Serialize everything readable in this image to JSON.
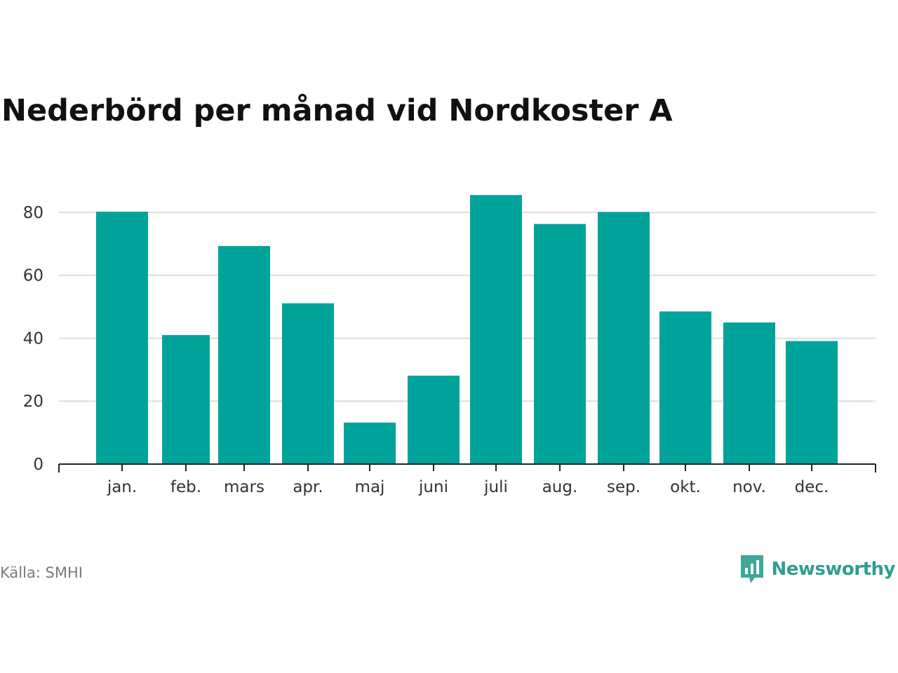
{
  "chart_data": {
    "type": "bar",
    "title": "Nederbörd per månad vid Nordkoster A",
    "xlabel": "",
    "ylabel": "",
    "categories": [
      "jan.",
      "feb.",
      "mars",
      "apr.",
      "maj",
      "juni",
      "juli",
      "aug.",
      "sep.",
      "okt.",
      "nov.",
      "dec."
    ],
    "values": [
      80.2,
      41.0,
      69.3,
      51.1,
      13.2,
      28.1,
      85.5,
      76.3,
      80.1,
      48.5,
      45.0,
      39.1
    ],
    "ylim": [
      0,
      90
    ],
    "yticks": [
      0,
      20,
      40,
      60,
      80
    ],
    "grid": true,
    "bar_color": "#00a39a"
  },
  "footer": {
    "source": "Källa: SMHI",
    "brand": "Newsworthy",
    "brand_color": "#2e9e93"
  },
  "icons": {
    "brand_logo": "newsworthy-logo-icon"
  }
}
